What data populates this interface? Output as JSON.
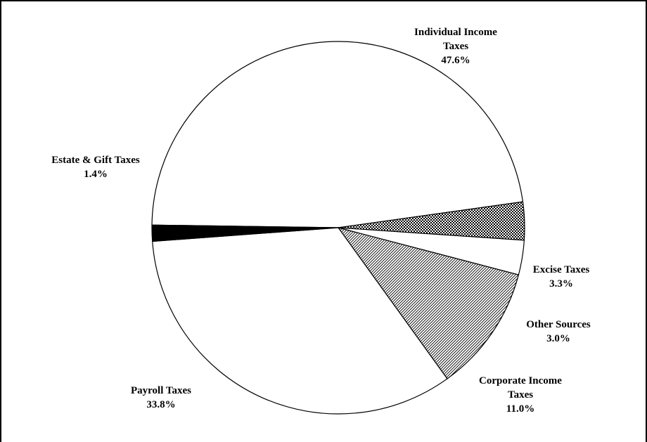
{
  "chart_data": {
    "type": "pie",
    "title": "",
    "slices": [
      {
        "name_lines": [
          "Individual Income",
          "Taxes"
        ],
        "value": 47.6,
        "value_label": "47.6%",
        "pattern": "none"
      },
      {
        "name_lines": [
          "Excise Taxes"
        ],
        "value": 3.3,
        "value_label": "3.3%",
        "pattern": "crosshatch"
      },
      {
        "name_lines": [
          "Other Sources"
        ],
        "value": 3.0,
        "value_label": "3.0%",
        "pattern": "none"
      },
      {
        "name_lines": [
          "Corporate Income",
          "Taxes"
        ],
        "value": 11.0,
        "value_label": "11.0%",
        "pattern": "diagonal"
      },
      {
        "name_lines": [
          "Payroll Taxes"
        ],
        "value": 33.8,
        "value_label": "33.8%",
        "pattern": "none"
      },
      {
        "name_lines": [
          "Estate & Gift Taxes"
        ],
        "value": 1.4,
        "value_label": "1.4%",
        "pattern": "solid"
      }
    ],
    "legend": "none",
    "colors": {
      "stroke": "#000000",
      "fill": "#ffffff",
      "solid": "#000000"
    }
  }
}
